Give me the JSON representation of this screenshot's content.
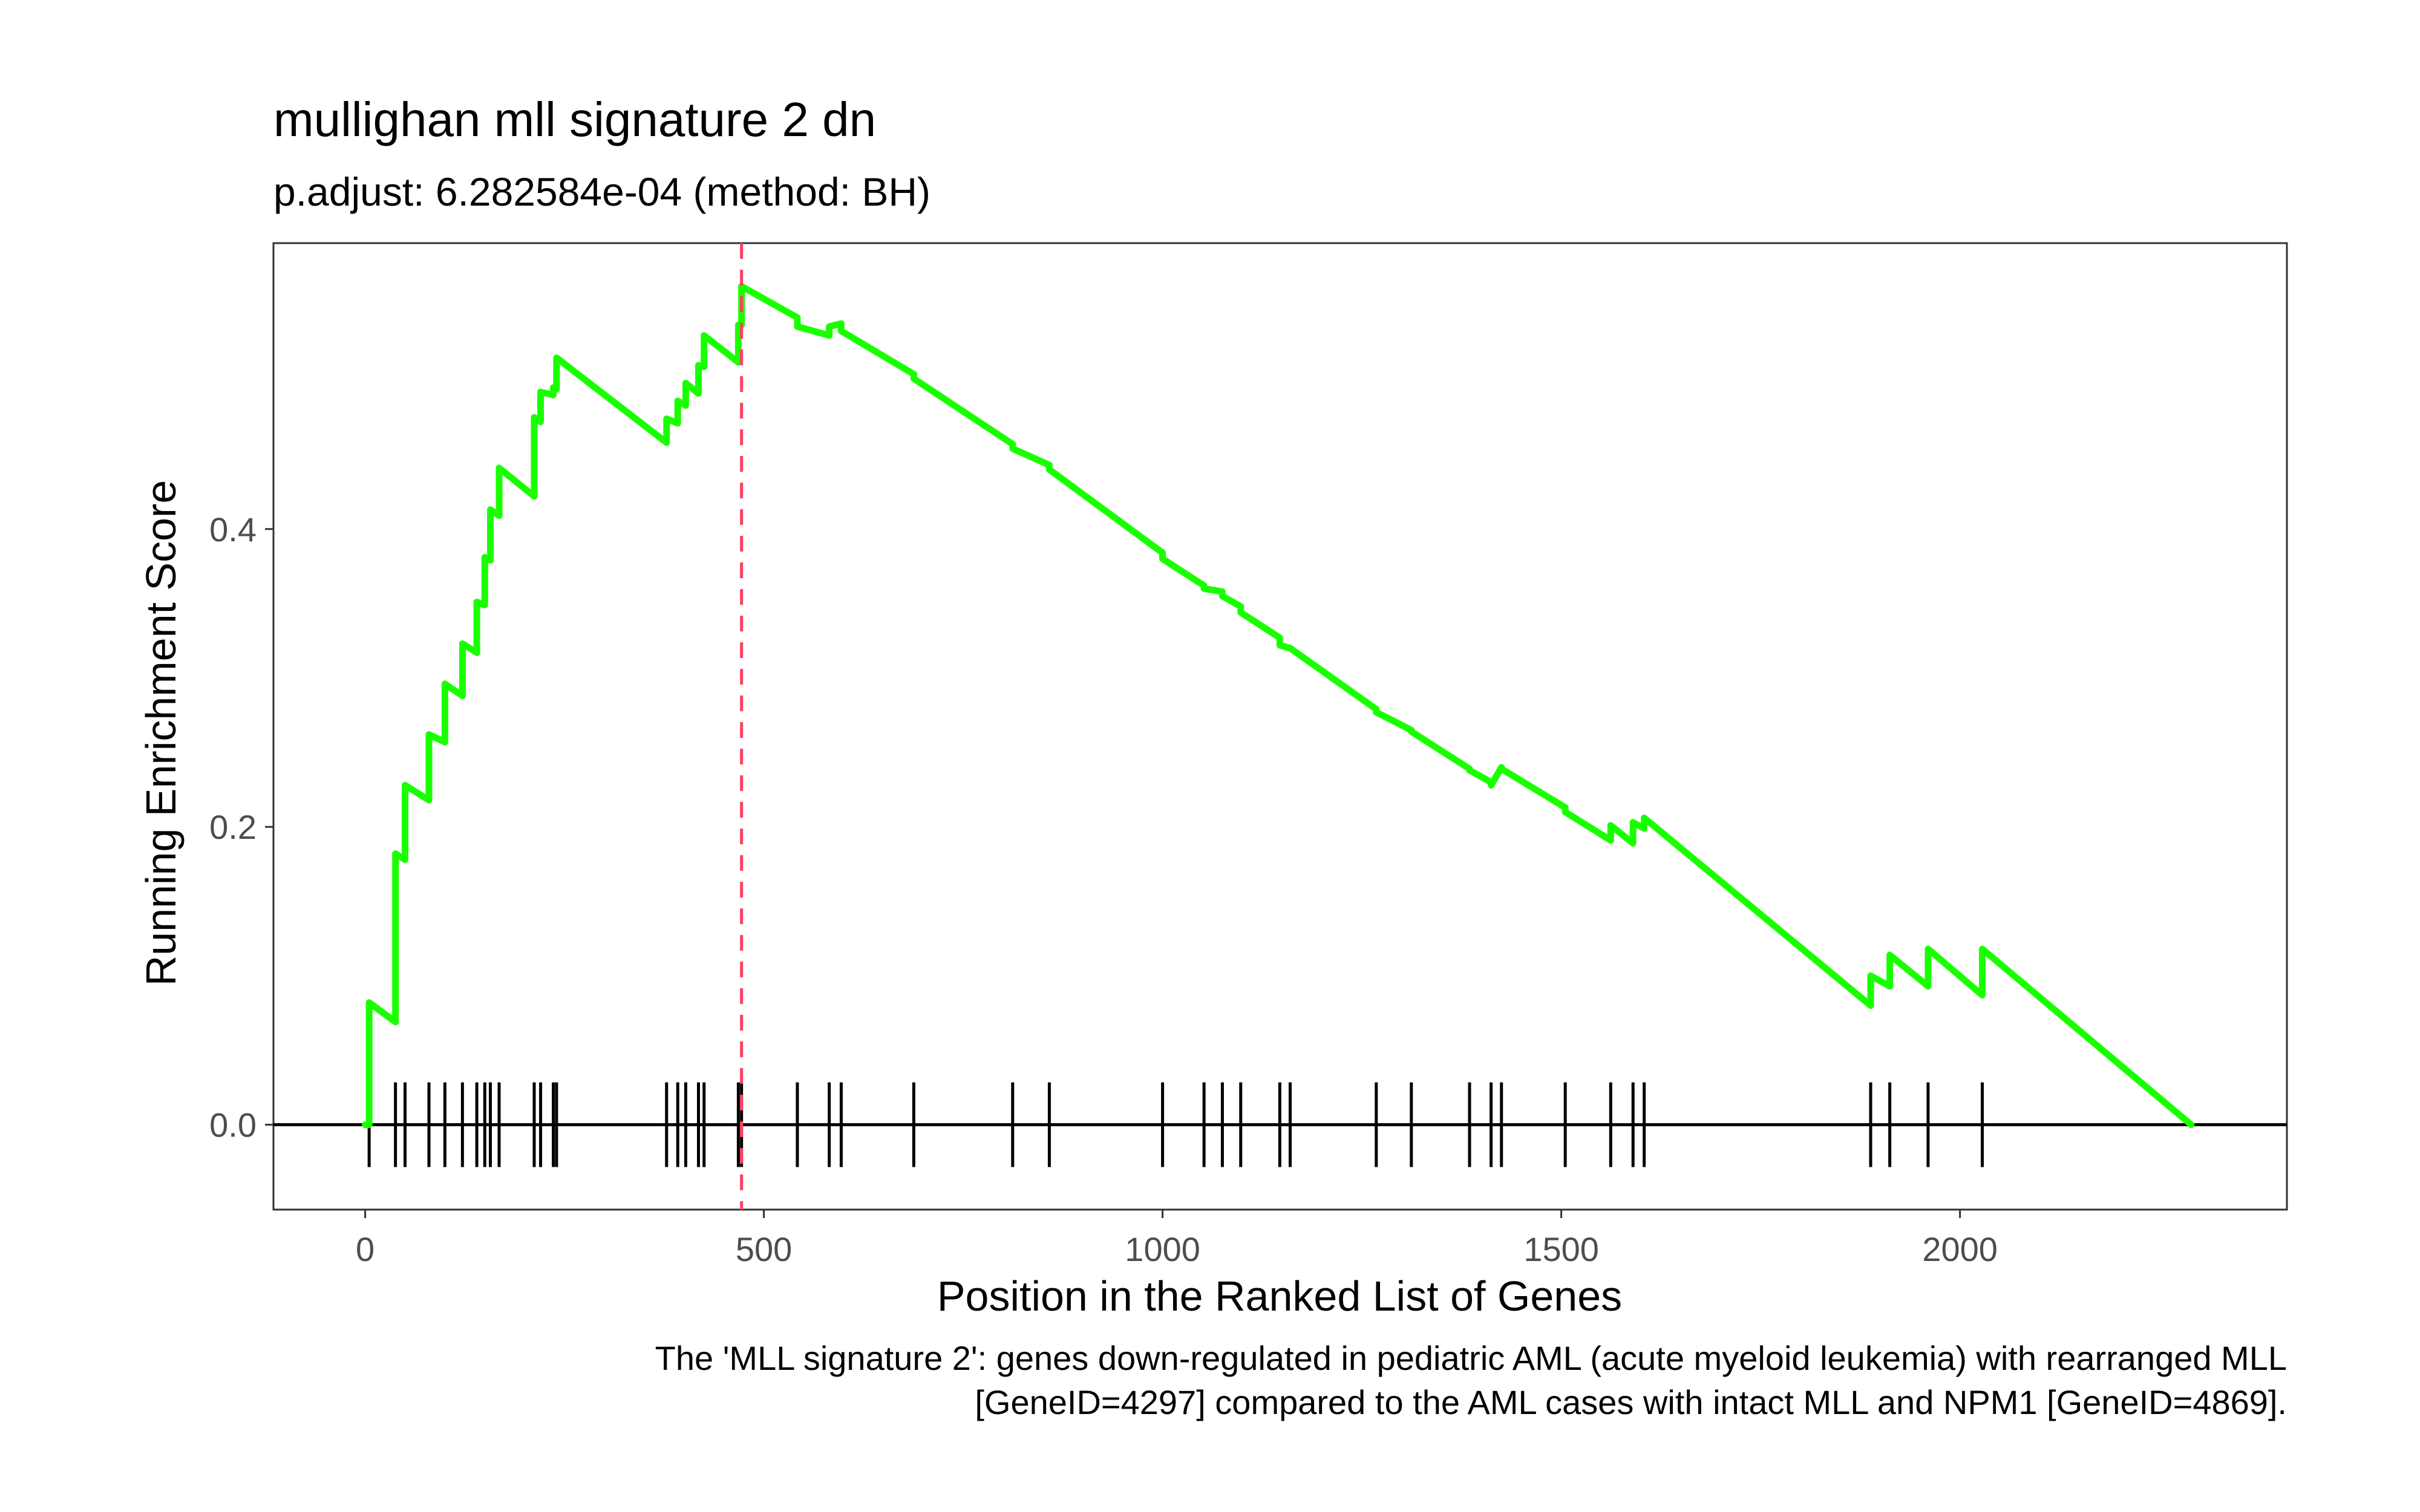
{
  "chart_data": {
    "type": "line",
    "title": "mullighan mll signature 2 dn",
    "subtitle": "p.adjust: 6.282584e-04 (method: BH)",
    "xlabel": "Position in the Ranked List of Genes",
    "ylabel": "Running Enrichment Score",
    "caption_lines": [
      "The 'MLL signature 2': genes down-regulated in pediatric AML (acute myeloid leukemia) with rearranged MLL",
      "[GeneID=4297] compared to the AML cases with intact MLL and NPM1 [GeneID=4869]."
    ],
    "xlim": [
      -115,
      2410
    ],
    "ylim": [
      -0.057,
      0.592
    ],
    "x_ticks": [
      0,
      500,
      1000,
      1500,
      2000
    ],
    "x_tick_labels": [
      "0",
      "500",
      "1000",
      "1500",
      "2000"
    ],
    "y_ticks": [
      0.0,
      0.2,
      0.4
    ],
    "y_tick_labels": [
      "0.0",
      "0.2",
      "0.4"
    ],
    "grid": false,
    "legend": "none",
    "series": [
      {
        "color": "#1aff00",
        "x": [
          0,
          5,
          5,
          38,
          38,
          50,
          50,
          80,
          80,
          100,
          100,
          122,
          122,
          140,
          140,
          150,
          150,
          157,
          157,
          168,
          168,
          212,
          212,
          220,
          220,
          236,
          236,
          240,
          240,
          378,
          378,
          392,
          392,
          402,
          402,
          418,
          418,
          425,
          425,
          468,
          468,
          472,
          472,
          542,
          542,
          582,
          582,
          597,
          597,
          688,
          688,
          812,
          812,
          858,
          858,
          1000,
          1000,
          1052,
          1052,
          1075,
          1075,
          1098,
          1098,
          1147,
          1147,
          1160,
          1160,
          1268,
          1268,
          1312,
          1312,
          1385,
          1385,
          1412,
          1412,
          1425,
          1425,
          1505,
          1505,
          1562,
          1562,
          1590,
          1590,
          1604,
          1604,
          1888,
          1888,
          1912,
          1912,
          1960,
          1960,
          2028,
          2028,
          2290
        ],
        "y": [
          0.0,
          0.0,
          0.082,
          0.069,
          0.182,
          0.178,
          0.228,
          0.218,
          0.262,
          0.257,
          0.296,
          0.288,
          0.323,
          0.317,
          0.351,
          0.349,
          0.381,
          0.379,
          0.413,
          0.409,
          0.441,
          0.422,
          0.475,
          0.472,
          0.492,
          0.49,
          0.495,
          0.494,
          0.515,
          0.458,
          0.474,
          0.471,
          0.486,
          0.483,
          0.498,
          0.491,
          0.51,
          0.509,
          0.53,
          0.512,
          0.537,
          0.537,
          0.563,
          0.542,
          0.536,
          0.53,
          0.536,
          0.538,
          0.533,
          0.504,
          0.501,
          0.457,
          0.454,
          0.443,
          0.44,
          0.384,
          0.38,
          0.362,
          0.36,
          0.358,
          0.355,
          0.348,
          0.344,
          0.327,
          0.322,
          0.32,
          0.32,
          0.279,
          0.277,
          0.265,
          0.264,
          0.239,
          0.238,
          0.23,
          0.228,
          0.24,
          0.239,
          0.213,
          0.21,
          0.191,
          0.201,
          0.189,
          0.203,
          0.199,
          0.206,
          0.08,
          0.1,
          0.093,
          0.114,
          0.093,
          0.118,
          0.087,
          0.118,
          0.0
        ]
      }
    ],
    "gene_hits_x": [
      5,
      38,
      50,
      80,
      100,
      122,
      140,
      150,
      157,
      168,
      212,
      220,
      236,
      240,
      378,
      392,
      402,
      418,
      425,
      468,
      472,
      542,
      582,
      597,
      688,
      812,
      858,
      1000,
      1052,
      1075,
      1098,
      1147,
      1160,
      1268,
      1312,
      1385,
      1412,
      1425,
      1505,
      1562,
      1590,
      1604,
      1888,
      1912,
      1960,
      2028
    ],
    "max_es_position": 472,
    "zero_line": 0.0,
    "colors": {
      "running_score_line": "#1aff00",
      "max_marker_line": "#ff4060",
      "hit_ticks": "#000000",
      "panel_border": "#333333"
    }
  }
}
